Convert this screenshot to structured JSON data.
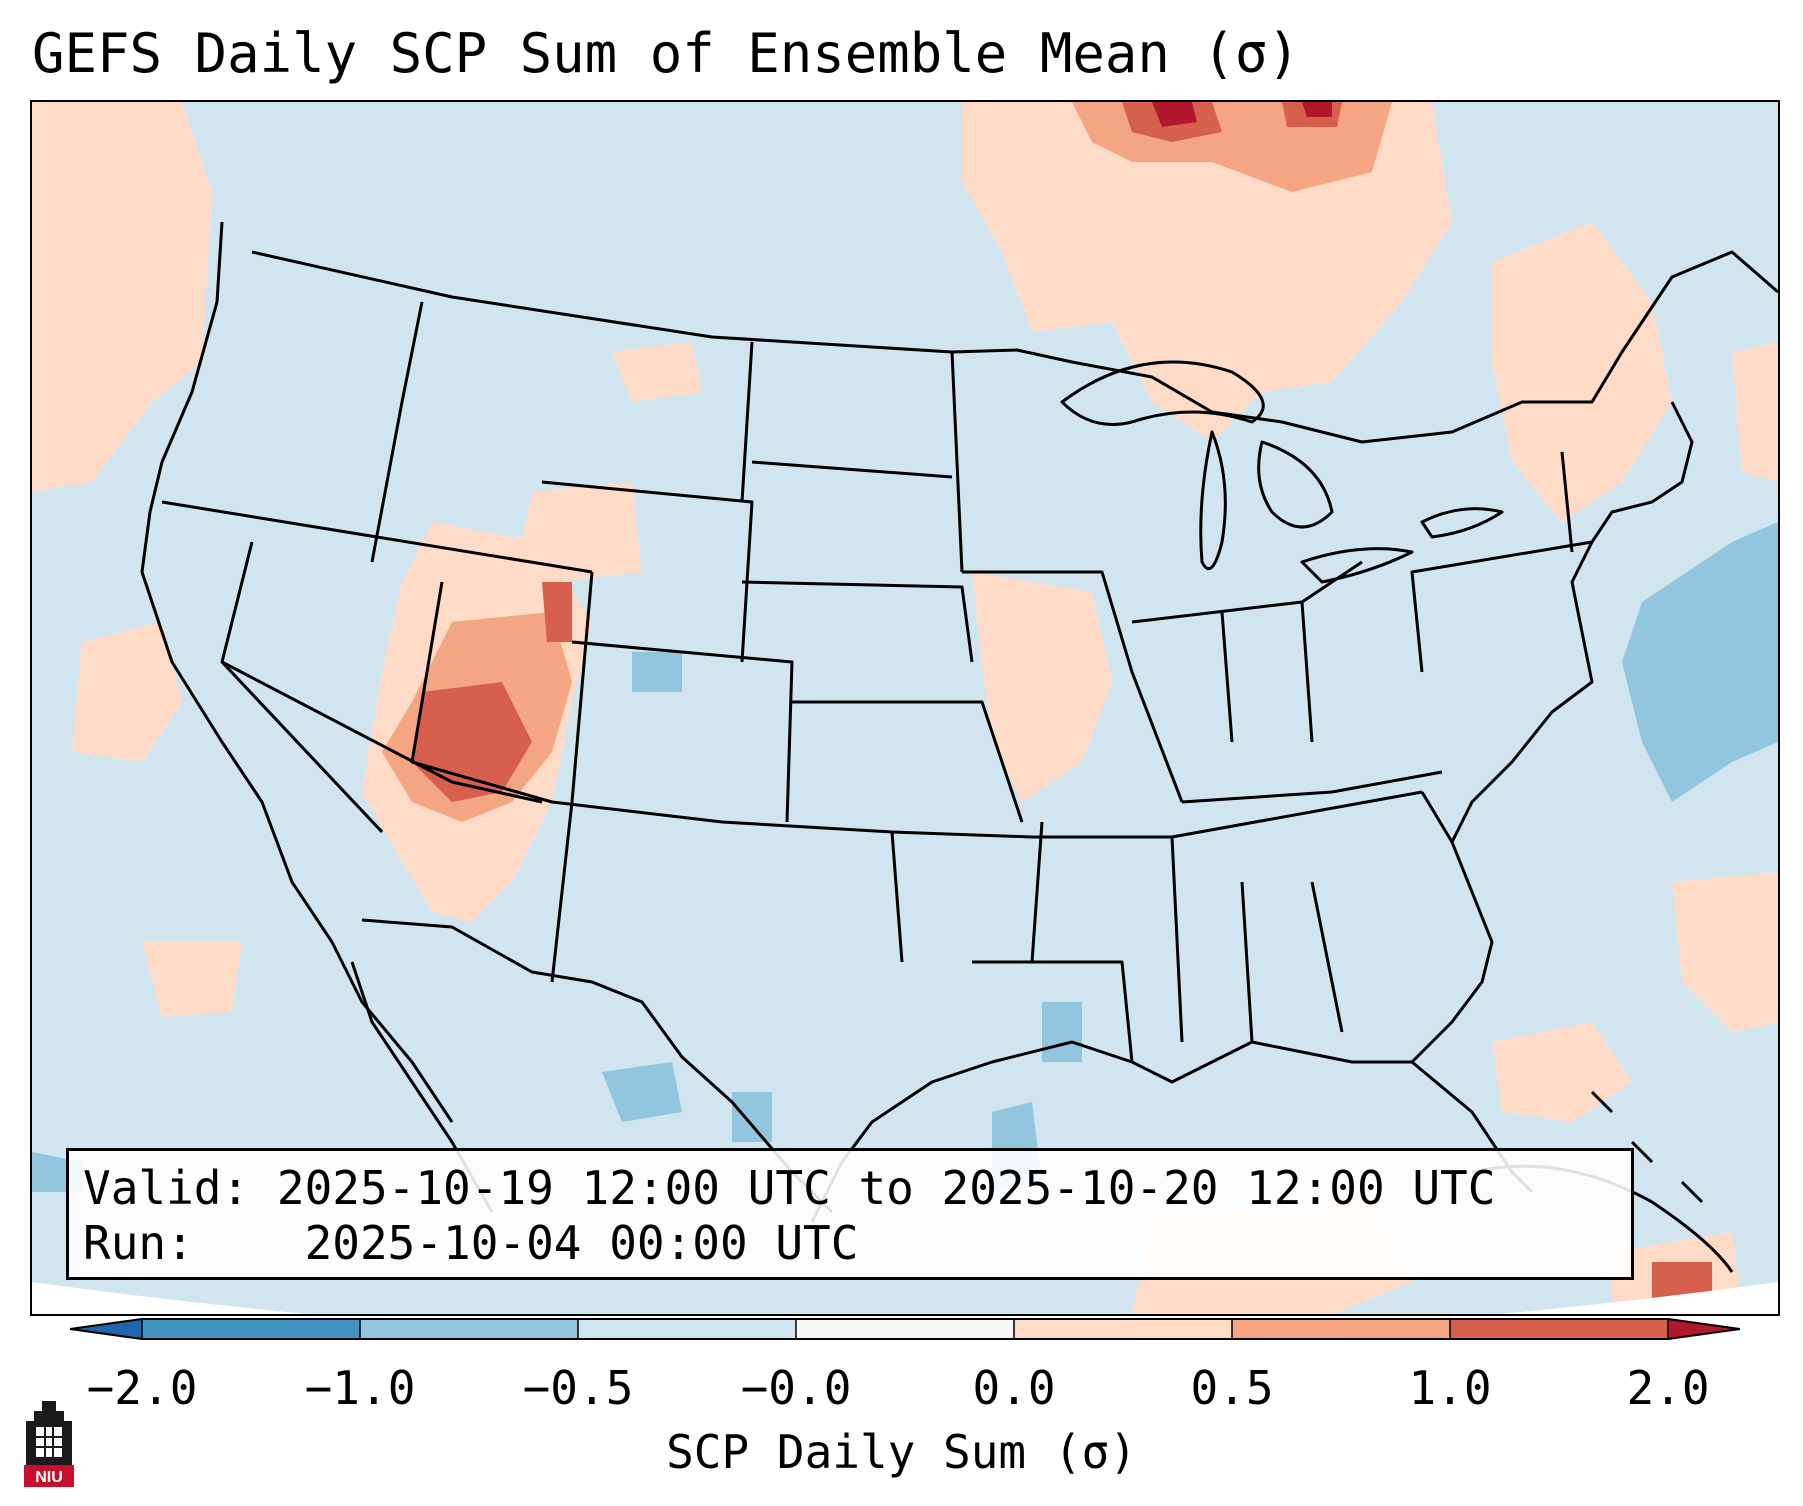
{
  "title": "GEFS Daily SCP Sum of Ensemble Mean (σ)",
  "info": {
    "valid_label": "Valid:",
    "valid_value": "2025-10-19 12:00 UTC to 2025-10-20 12:00 UTC",
    "run_label": "Run:",
    "run_value": "2025-10-04 00:00 UTC"
  },
  "colorbar": {
    "label": "SCP Daily Sum (σ)",
    "ticks": [
      "−2.0",
      "−1.0",
      "−0.5",
      "−0.0",
      "0.0",
      "0.5",
      "1.0",
      "2.0"
    ],
    "colors": {
      "under": "#2166ac",
      "b1": "#4393c3",
      "b2": "#92c5de",
      "b3": "#d1e5f0",
      "b4": "#f7f7f7",
      "b5": "#fddbc7",
      "b6": "#f4a582",
      "b7": "#d6604d",
      "over": "#b2182b"
    }
  },
  "map": {
    "background": "#d1e5f0",
    "outline": "#000000",
    "anomaly_regions": [
      {
        "name": "four-corners-high",
        "level": "1.0"
      },
      {
        "name": "upper-great-lakes-ontario-high",
        "level": "2.0"
      },
      {
        "name": "western-atlantic-low",
        "level": "-1.0"
      }
    ]
  },
  "logo": {
    "text": "NIU",
    "color": "#c8102e"
  }
}
